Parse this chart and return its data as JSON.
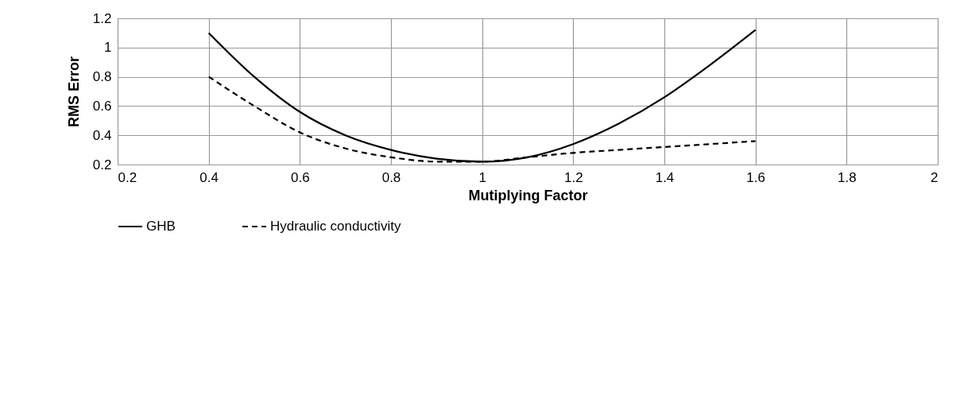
{
  "chart_data": {
    "type": "line",
    "xlabel": "Mutiplying Factor",
    "ylabel": "RMS Error",
    "x": [
      0.4,
      0.5,
      0.6,
      0.7,
      0.8,
      0.9,
      1.0,
      1.1,
      1.2,
      1.3,
      1.4,
      1.5,
      1.6
    ],
    "series": [
      {
        "name": "GHB",
        "color": "#000000",
        "line_style": "solid",
        "values": [
          1.1,
          0.8,
          0.56,
          0.4,
          0.3,
          0.24,
          0.22,
          0.25,
          0.34,
          0.48,
          0.66,
          0.88,
          1.12
        ]
      },
      {
        "name": "Hydraulic conductivity",
        "color": "#000000",
        "line_style": "dashed",
        "values": [
          0.8,
          0.6,
          0.42,
          0.31,
          0.25,
          0.22,
          0.22,
          0.25,
          0.28,
          0.3,
          0.32,
          0.34,
          0.36
        ]
      }
    ],
    "xlim": [
      0.2,
      2
    ],
    "xticks": [
      0.2,
      0.4,
      0.6,
      0.8,
      {
        "value": 1,
        "label": "1"
      },
      1.2,
      1.4,
      1.6,
      1.8,
      {
        "value": 2,
        "label": "2"
      }
    ],
    "ylim": [
      0.2,
      1.2
    ],
    "yticks": [
      0.2,
      0.4,
      0.6,
      0.8,
      {
        "value": 1,
        "label": "1"
      },
      1.2
    ],
    "grid": true,
    "legend": "bottom",
    "marker": "none"
  }
}
